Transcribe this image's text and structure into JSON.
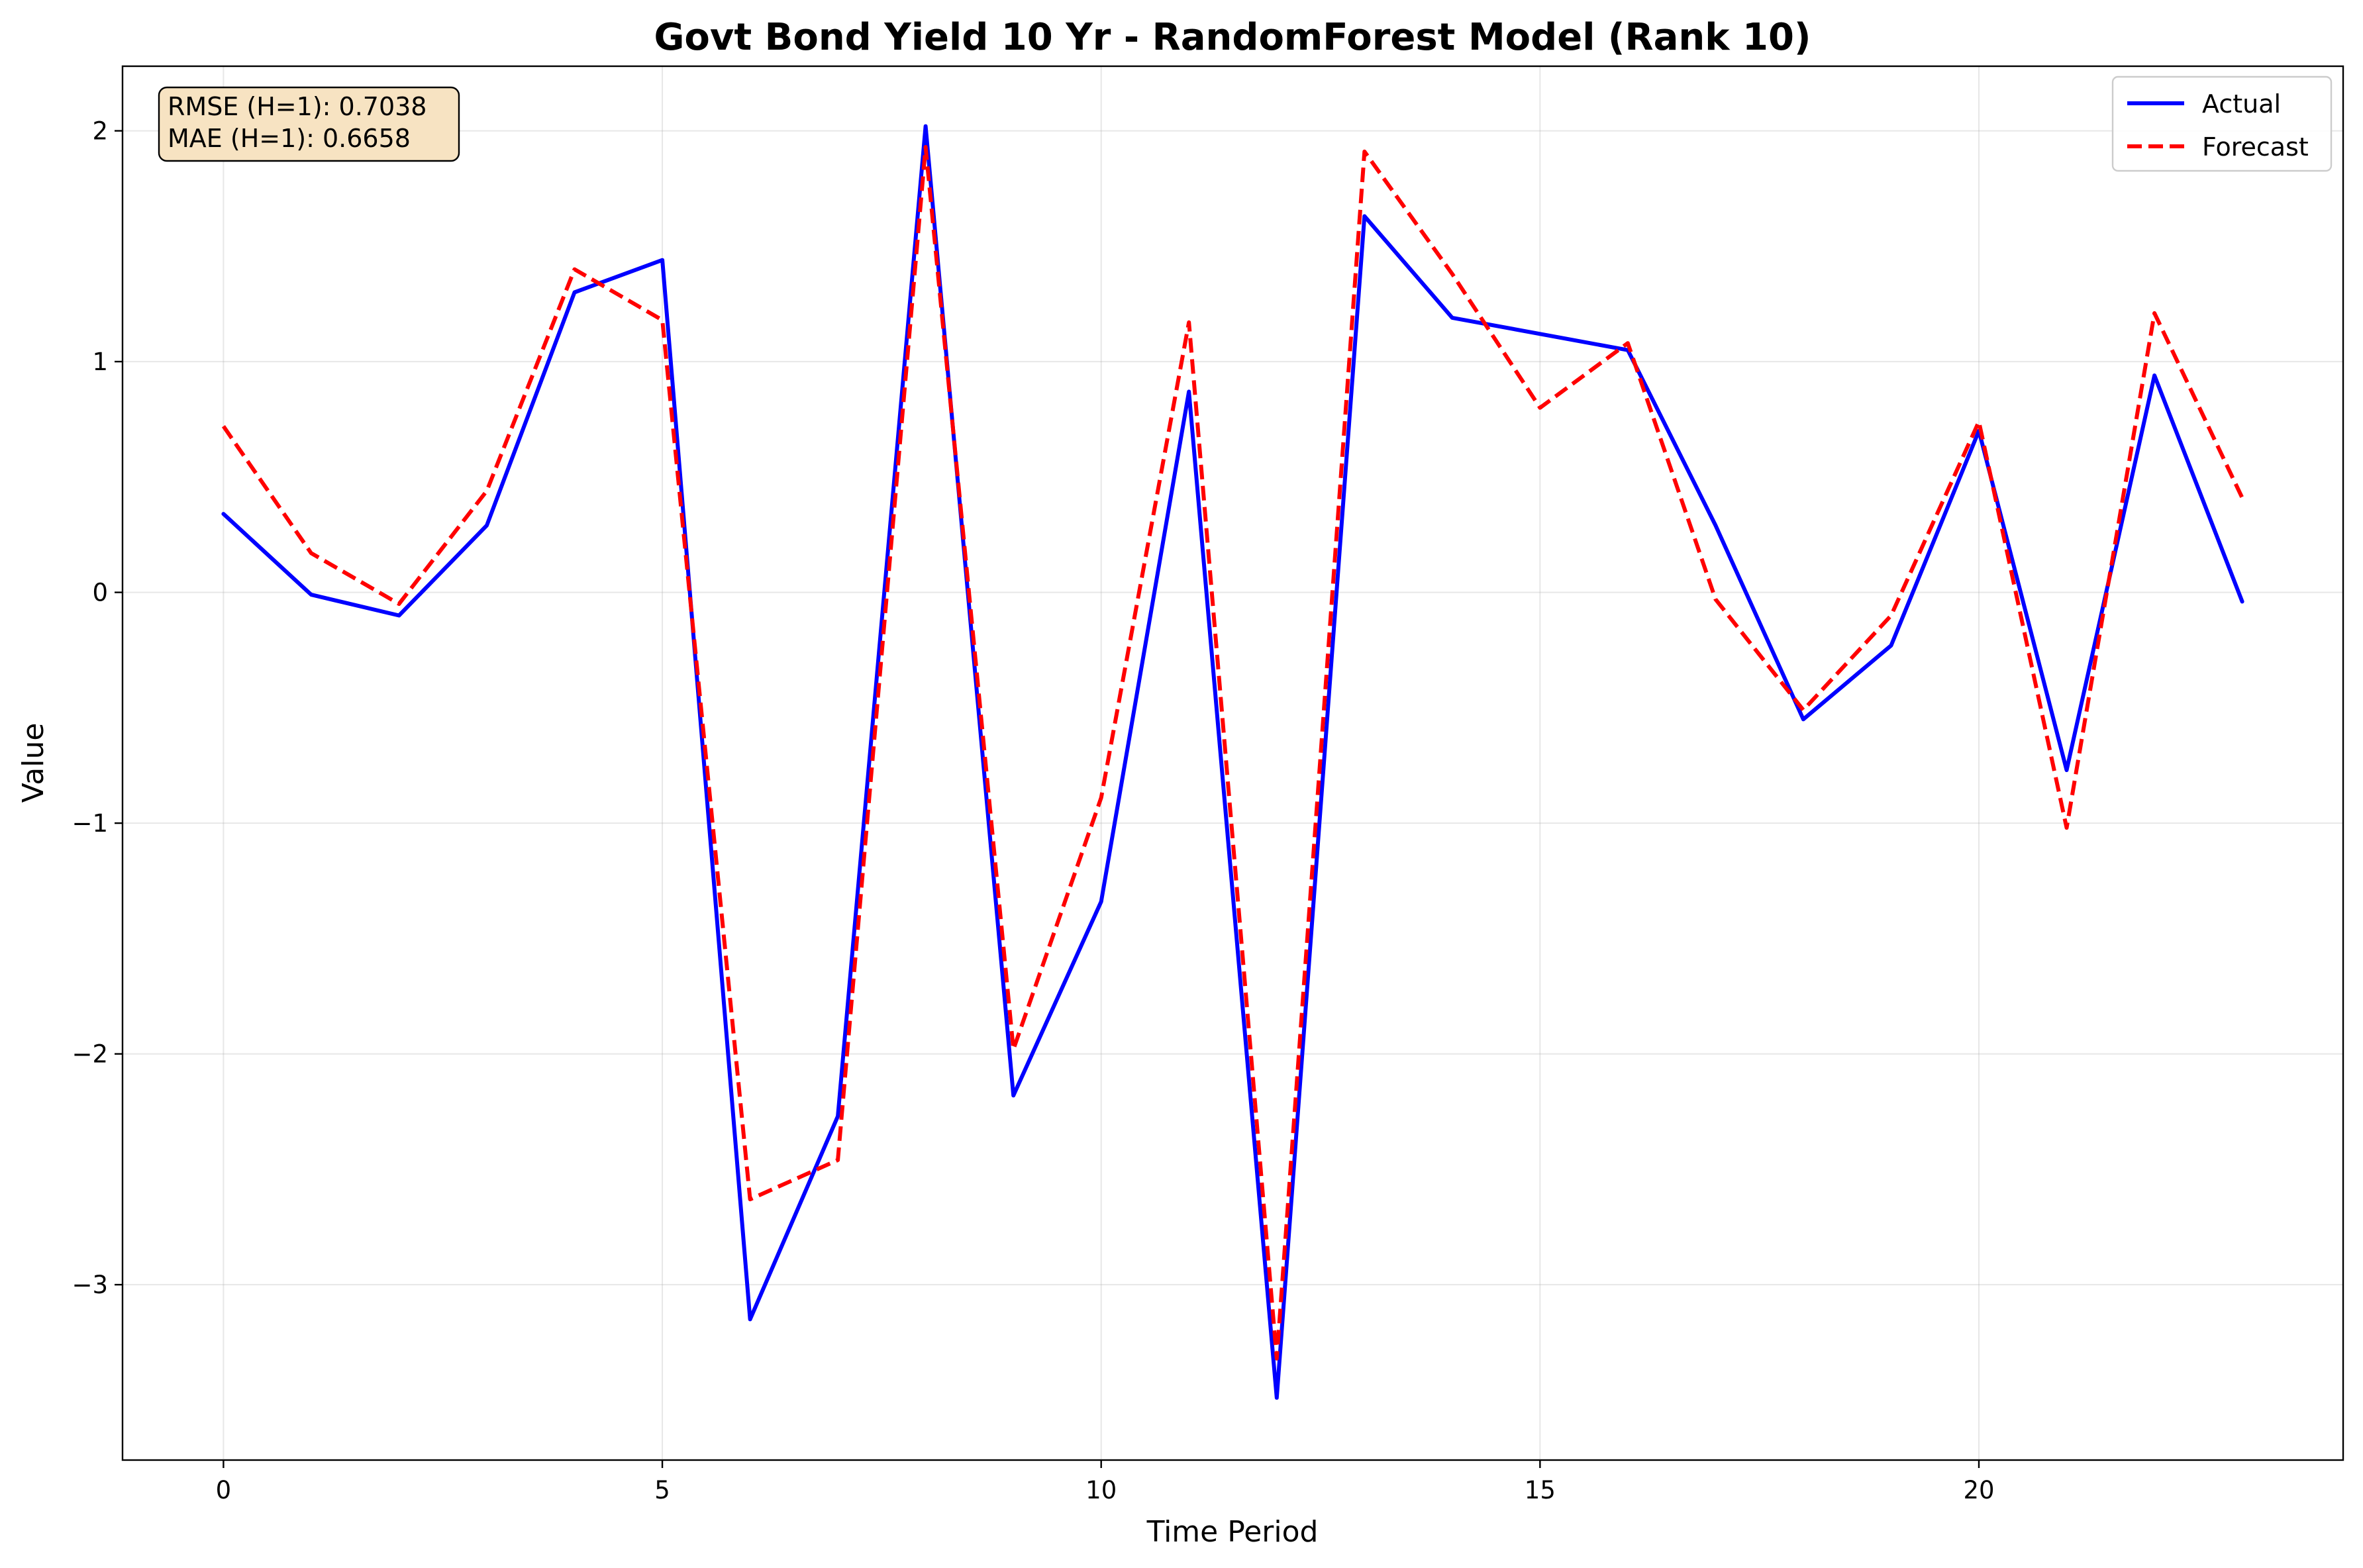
{
  "chart_data": {
    "type": "line",
    "title": "Govt Bond Yield 10 Yr - RandomForest Model (Rank 10)",
    "xlabel": "Time Period",
    "ylabel": "Value",
    "xlim": [
      -1.15,
      24.15
    ],
    "ylim": [
      -3.76,
      2.28
    ],
    "xticks": [
      0,
      5,
      10,
      15,
      20
    ],
    "yticks": [
      -3,
      -2,
      -1,
      0,
      1,
      2
    ],
    "xtick_labels": [
      "0",
      "5",
      "10",
      "15",
      "20"
    ],
    "ytick_labels": [
      "−3",
      "−2",
      "−1",
      "0",
      "1",
      "2"
    ],
    "grid": true,
    "legend_position": "top-right",
    "x": [
      0,
      1,
      2,
      3,
      4,
      5,
      6,
      7,
      8,
      9,
      10,
      11,
      12,
      13,
      14,
      15,
      16,
      17,
      18,
      19,
      20,
      21,
      22,
      23
    ],
    "series": [
      {
        "name": "Actual",
        "color": "#0000ff",
        "style": "solid",
        "values": [
          0.34,
          -0.01,
          -0.1,
          0.29,
          1.3,
          1.44,
          -3.15,
          -2.27,
          2.02,
          -2.18,
          -1.34,
          0.87,
          -3.49,
          1.63,
          1.19,
          1.12,
          1.05,
          0.29,
          -0.55,
          -0.23,
          0.7,
          -0.77,
          0.94,
          -0.04
        ]
      },
      {
        "name": "Forecast",
        "color": "#ff0000",
        "style": "dashed",
        "values": [
          0.72,
          0.17,
          -0.05,
          0.44,
          1.4,
          1.18,
          -2.63,
          -2.46,
          1.93,
          -1.98,
          -0.89,
          1.17,
          -3.32,
          1.91,
          1.38,
          0.8,
          1.08,
          -0.03,
          -0.51,
          -0.1,
          0.74,
          -1.02,
          1.21,
          0.41
        ]
      }
    ],
    "annotation": {
      "lines": [
        "RMSE (H=1): 0.7038",
        "MAE (H=1): 0.6658"
      ],
      "background": "#f7e3c2"
    }
  }
}
